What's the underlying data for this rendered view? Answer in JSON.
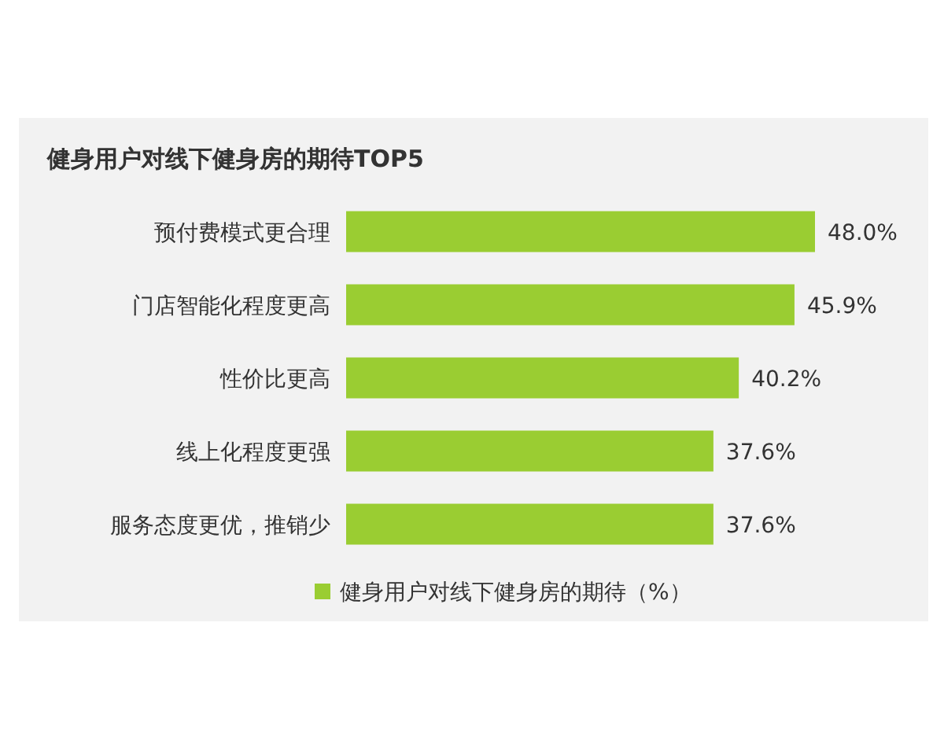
{
  "chart_data": {
    "type": "bar",
    "orientation": "horizontal",
    "title": "健身用户对线下健身房的期待TOP5",
    "categories": [
      "预付费模式更合理",
      "门店智能化程度更高",
      "性价比更高",
      "线上化程度更强",
      "服务态度更优，推销少"
    ],
    "series": [
      {
        "name": "健身用户对线下健身房的期待（%）",
        "color": "#9acd32",
        "values": [
          48.0,
          45.9,
          40.2,
          37.6,
          37.6
        ],
        "value_labels": [
          "48.0%",
          "45.9%",
          "40.2%",
          "37.6%",
          "37.6%"
        ]
      }
    ],
    "legend": "bottom",
    "grid": false
  }
}
